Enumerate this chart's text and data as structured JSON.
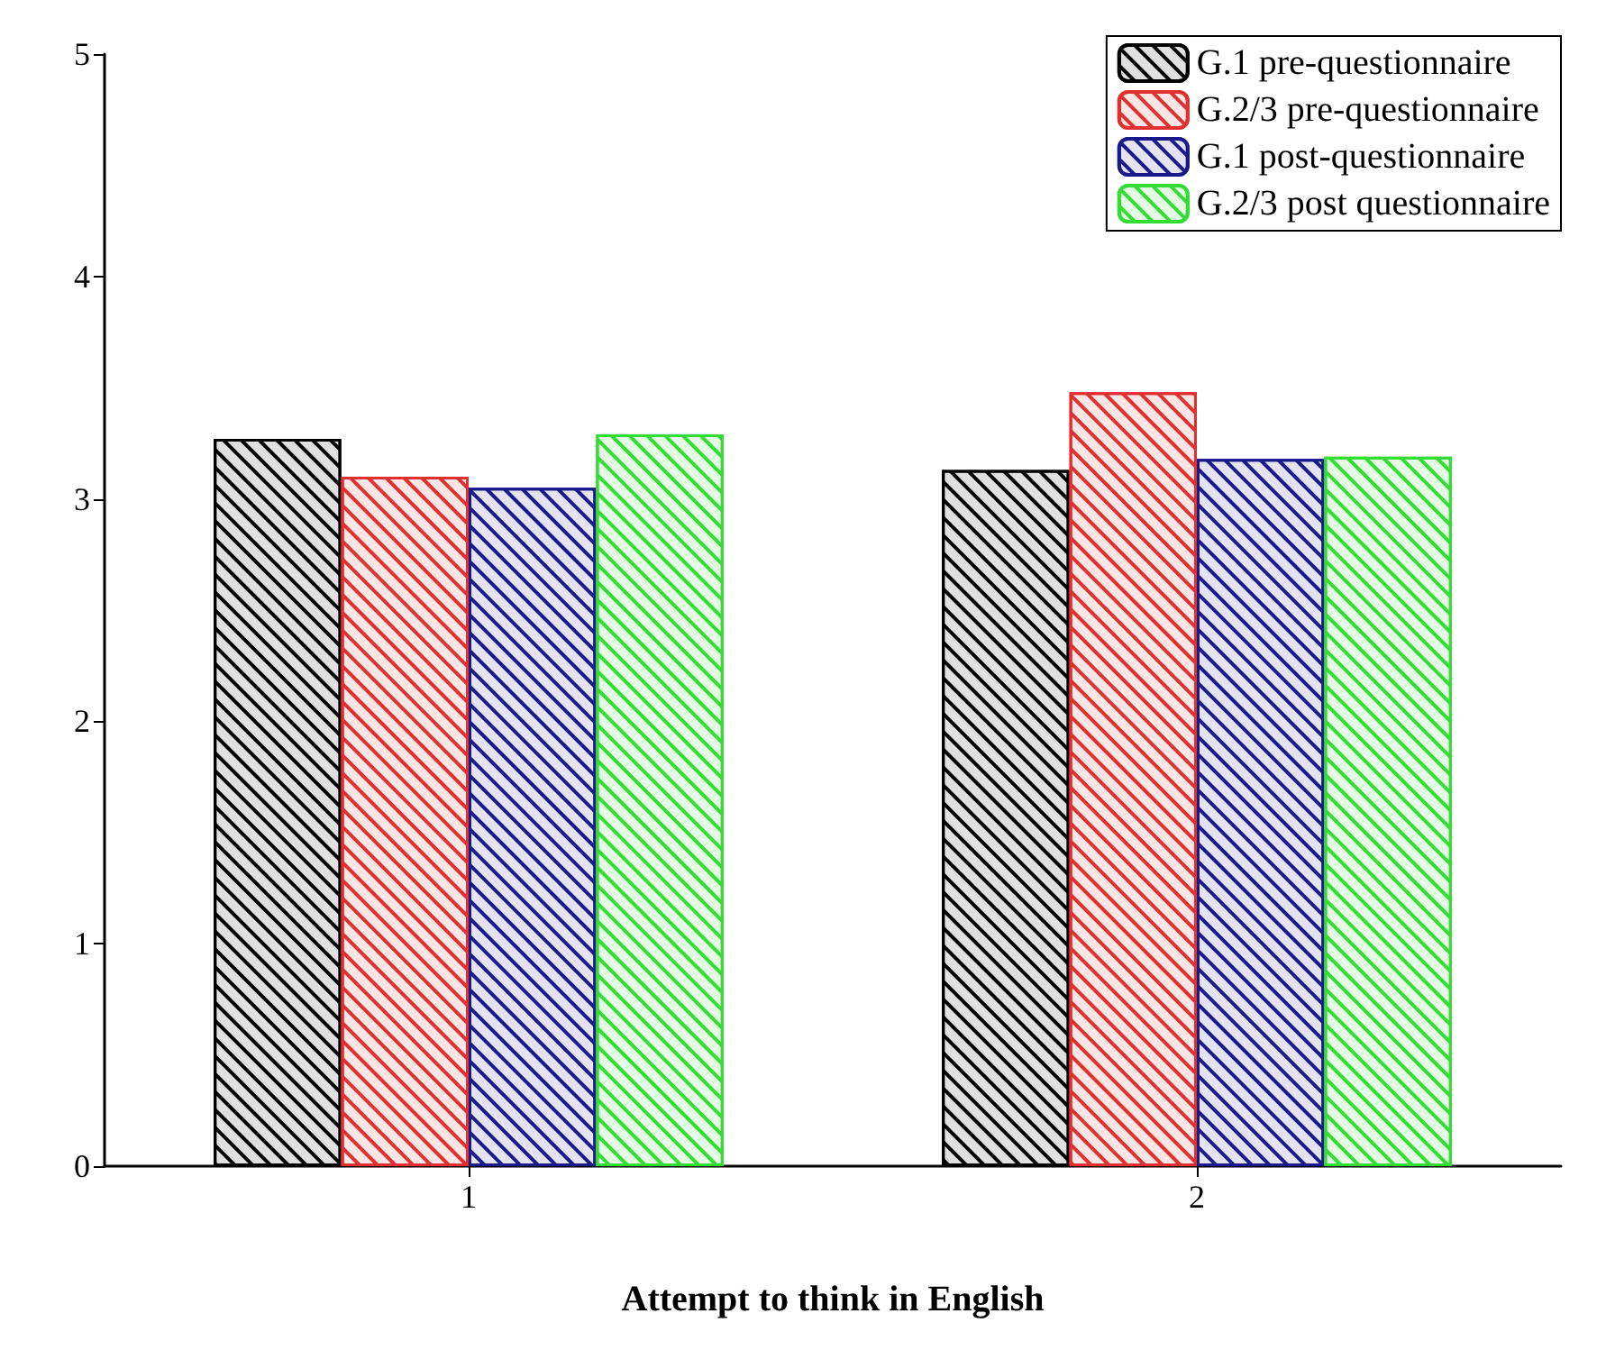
{
  "chart_data": {
    "type": "bar",
    "xlabel": "Attempt to think in English",
    "categories": [
      "1",
      "2"
    ],
    "series": [
      {
        "name": "G.1 pre-questionnaire",
        "color": "#000000",
        "values": [
          3.27,
          3.13
        ]
      },
      {
        "name": "G.2/3 pre-questionnaire",
        "color": "#e03030",
        "values": [
          3.1,
          3.48
        ]
      },
      {
        "name": "G.1 post-questionnaire",
        "color": "#1a1a8c",
        "values": [
          3.05,
          3.18
        ]
      },
      {
        "name": "G.2/3 post questionnaire",
        "color": "#33dd33",
        "values": [
          3.29,
          3.19
        ]
      }
    ],
    "ylim": [
      0,
      5
    ],
    "yticks": [
      0,
      1,
      2,
      3,
      4,
      5
    ],
    "grid": false,
    "legend": "top right"
  }
}
